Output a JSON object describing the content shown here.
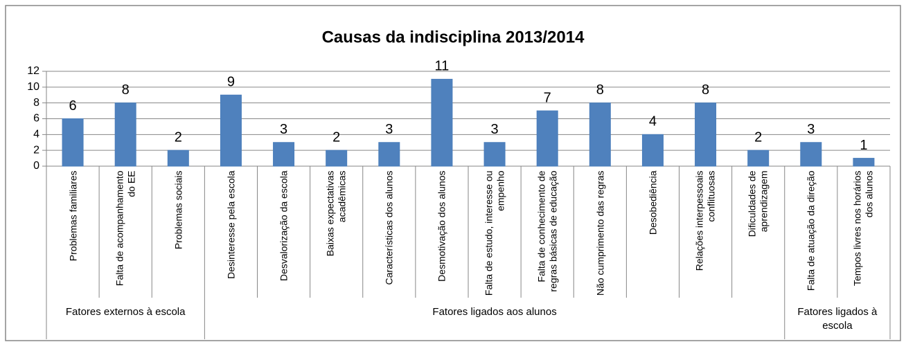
{
  "chart_data": {
    "type": "bar",
    "title": "Causas da indisciplina  2013/2014",
    "category_groups": [
      {
        "name": "Fatores externos à escola",
        "categories": [
          "Problemas familiares",
          "Falta de acompanhamento do EE",
          "Problemas sociais"
        ]
      },
      {
        "name": "Fatores ligados aos alunos",
        "categories": [
          "Desinteresse pela escola",
          "Desvalorização da escola",
          "Baixas expectativas acadêmicas",
          "Características dos alunos",
          "Desmotivação dos alunos",
          "Falta de estudo, interesse ou empenho",
          "Falta de conhecimento de regras básicas de educação",
          "Não cumprimento das regras",
          "Desobediência",
          "Relações interpessoais conflituosas",
          "Dificuldades de aprendizagem"
        ]
      },
      {
        "name": "Fatores ligados à escola",
        "categories": [
          "Falta de atuação da direção",
          "Tempos livres nos horários dos alunos"
        ]
      }
    ],
    "values": [
      6,
      8,
      2,
      9,
      3,
      2,
      3,
      11,
      3,
      7,
      8,
      4,
      8,
      2,
      3,
      1
    ],
    "color": "#4f81bd",
    "ylim": [
      0,
      12
    ],
    "yticks": [
      0,
      2,
      4,
      6,
      8,
      10,
      12
    ],
    "grid": true
  }
}
